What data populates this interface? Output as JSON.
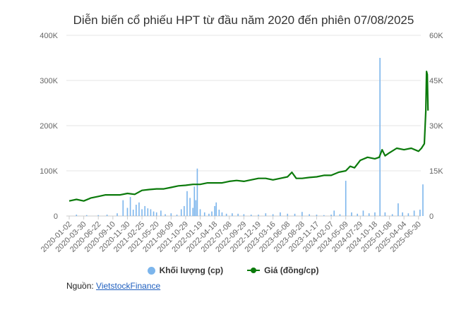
{
  "chart_data": {
    "type": "bar+line",
    "title": "Diễn biến cổ phiếu HPT từ đầu năm 2020 đến phiên 07/08/2025",
    "x_tick_labels": [
      "2020-01-02",
      "2020-03-30",
      "2020-06-22",
      "2020-09-10",
      "2020-11-30",
      "2021-02-25",
      "2021-05-20",
      "2021-08-09",
      "2021-10-29",
      "2022-01-19",
      "2022-04-18",
      "2022-07-08",
      "2022-09-29",
      "2022-12-19",
      "2023-03-16",
      "2023-06-08",
      "2023-08-28",
      "2023-11-17",
      "2024-02-07",
      "2024-05-09",
      "2024-07-29",
      "2024-10-18",
      "2025-01-08",
      "2025-04-04",
      "2025-06-30"
    ],
    "y_left": {
      "ticks": [
        "0",
        "100K",
        "200K",
        "300K",
        "400K"
      ],
      "min": 0,
      "max": 400000
    },
    "y_right": {
      "ticks": [
        "0",
        "15K",
        "30K",
        "45K",
        "60K"
      ],
      "min": 0,
      "max": 60000
    },
    "grid": true,
    "legend_position": "bottom",
    "series": [
      {
        "name": "Khối lượng (cp)",
        "type": "bar",
        "axis": "left",
        "color": "#7cb5ec",
        "x_index": [
          0.5,
          1.2,
          2.0,
          2.6,
          3.3,
          3.7,
          4.0,
          4.2,
          4.4,
          4.6,
          4.8,
          5.0,
          5.2,
          5.4,
          5.6,
          5.8,
          6.0,
          6.3,
          6.6,
          7.0,
          7.4,
          7.7,
          7.9,
          8.1,
          8.3,
          8.5,
          8.6,
          8.7,
          8.8,
          9.0,
          9.3,
          9.6,
          9.8,
          10.0,
          10.1,
          10.3,
          10.5,
          10.8,
          11.2,
          11.6,
          12.0,
          12.5,
          13.0,
          13.5,
          14.0,
          14.5,
          15.0,
          15.5,
          16.0,
          16.5,
          17.0,
          17.5,
          18.0,
          18.2,
          18.6,
          19.0,
          19.4,
          19.8,
          20.2,
          20.6,
          21.0,
          21.35,
          21.7,
          22.2,
          22.6,
          22.9,
          23.3,
          23.7,
          24.1,
          24.3
        ],
        "values": [
          3000,
          2000,
          2000,
          3000,
          6000,
          35000,
          18000,
          42000,
          14000,
          25000,
          30000,
          15000,
          22000,
          17000,
          15000,
          10000,
          8000,
          12000,
          4000,
          6000,
          3000,
          15000,
          22000,
          55000,
          40000,
          18000,
          65000,
          35000,
          105000,
          15000,
          8000,
          5000,
          10000,
          22000,
          30000,
          14000,
          8000,
          5000,
          6000,
          5000,
          4000,
          3000,
          3000,
          6000,
          4000,
          8000,
          5000,
          5000,
          9000,
          4000,
          3000,
          2000,
          3000,
          12000,
          4000,
          78000,
          8000,
          5000,
          12000,
          6000,
          8000,
          350000,
          8000,
          4000,
          28000,
          8000,
          6000,
          12000,
          14000,
          70000
        ]
      },
      {
        "name": "Giá (đồng/cp)",
        "type": "line",
        "axis": "right",
        "color": "#0b7a0b",
        "x_index": [
          0,
          0.5,
          1.0,
          1.5,
          2.0,
          2.5,
          3.0,
          3.5,
          4.0,
          4.5,
          5.0,
          5.5,
          6.0,
          6.5,
          7.0,
          7.5,
          8.0,
          8.5,
          9.0,
          9.5,
          10.0,
          10.5,
          11.0,
          11.5,
          12.0,
          12.5,
          13.0,
          13.5,
          14.0,
          14.5,
          15.0,
          15.3,
          15.6,
          16.0,
          16.5,
          17.0,
          17.5,
          18.0,
          18.5,
          19.0,
          19.3,
          19.6,
          20.0,
          20.5,
          21.0,
          21.3,
          21.5,
          21.7,
          22.0,
          22.5,
          23.0,
          23.5,
          24.0,
          24.2,
          24.4,
          24.5,
          24.55,
          24.6,
          24.65
        ],
        "values": [
          5000,
          5500,
          5000,
          6000,
          6500,
          7000,
          7000,
          7000,
          7500,
          7200,
          8500,
          8800,
          9000,
          9000,
          9500,
          10000,
          10200,
          10500,
          10500,
          11000,
          11000,
          11000,
          11500,
          11800,
          11500,
          12000,
          12500,
          12500,
          12000,
          12500,
          13000,
          14500,
          12500,
          12500,
          12800,
          13000,
          13500,
          13500,
          14500,
          15000,
          16500,
          16000,
          18500,
          19500,
          19000,
          19500,
          22000,
          20000,
          21000,
          22500,
          22000,
          22500,
          21500,
          22500,
          24000,
          35000,
          48000,
          47000,
          35000
        ]
      }
    ],
    "legend": {
      "volume_label": "Khối lượng (cp)",
      "price_label": "Giá (đồng/cp)"
    },
    "source": {
      "prefix": "Nguồn:",
      "link_text": "VietstockFinance"
    }
  }
}
